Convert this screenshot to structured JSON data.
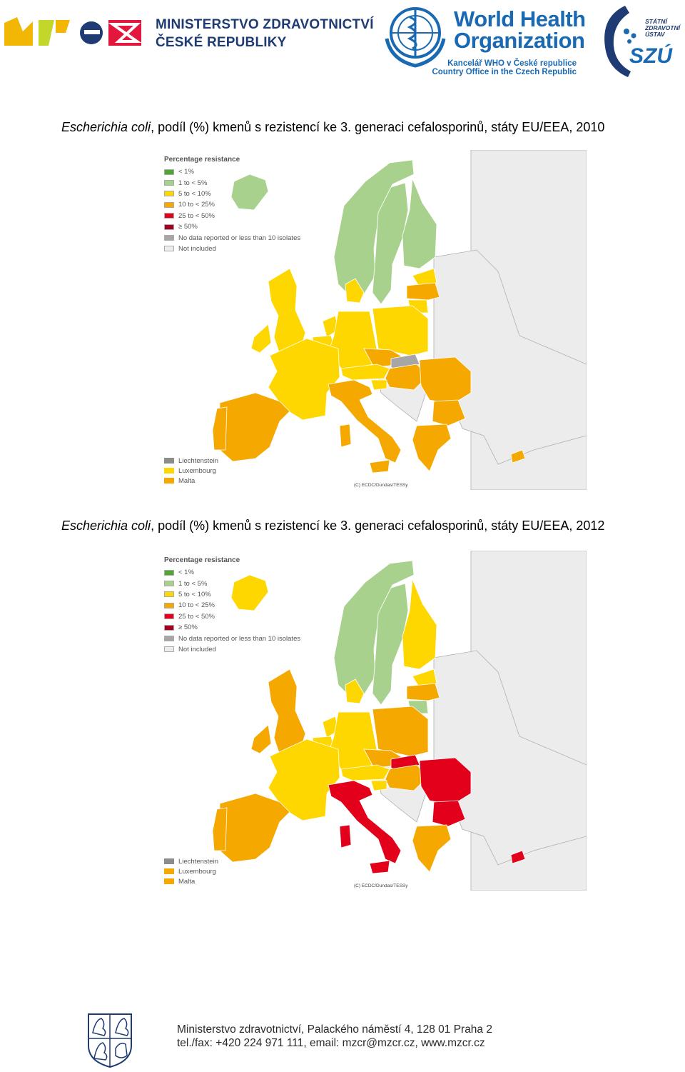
{
  "header": {
    "ministry_line1": "MINISTERSTVO ZDRAVOTNICTVÍ",
    "ministry_line2": "ČESKÉ REPUBLIKY",
    "who_line1": "World Health",
    "who_line2": "Organization",
    "who_sub1": "Kancelář WHO v České republice",
    "who_sub2": "Country Office in the Czech Republic",
    "szu_line1": "STÁTNÍ",
    "szu_line2": "ZDRAVOTNÍ",
    "szu_line3": "ÚSTAV",
    "szu_mark": "SZÚ"
  },
  "maps": [
    {
      "title_italic": "Escherichia coli",
      "title_rest": ", podíl (%) kmenů s rezistencí ke 3. generaci cefalosporinů, státy EU/EEA, 2010",
      "legend_title": "Percentage resistance",
      "legend": [
        {
          "label": "< 1%",
          "color": "#4ea72e"
        },
        {
          "label": "1 to < 5%",
          "color": "#a9d18e"
        },
        {
          "label": "5 to < 10%",
          "color": "#ffd700"
        },
        {
          "label": "10 to < 25%",
          "color": "#f5a800"
        },
        {
          "label": "25 to < 50%",
          "color": "#e2001a"
        },
        {
          "label": "≥ 50%",
          "color": "#a50021"
        },
        {
          "label": "No data reported or less than 10 isolates",
          "color": "#a6a6a6"
        },
        {
          "label": "Not included",
          "color": "#ececec"
        }
      ],
      "small_states": [
        {
          "label": "Liechtenstein",
          "color": "#8c8c8c"
        },
        {
          "label": "Luxembourg",
          "color": "#ffd700"
        },
        {
          "label": "Malta",
          "color": "#f5a800"
        }
      ],
      "copyright": "(C) ECDC/Dundas/TESSy",
      "countries": {
        "iceland": "#a9d18e",
        "norway": "#a9d18e",
        "sweden": "#a9d18e",
        "finland": "#a9d18e",
        "estonia": "#ffd700",
        "latvia": "#f5a800",
        "lithuania": "#ffd700",
        "ireland": "#ffd700",
        "uk": "#ffd700",
        "denmark": "#ffd700",
        "netherlands": "#ffd700",
        "belgium": "#ffd700",
        "germany": "#ffd700",
        "poland": "#ffd700",
        "czech": "#f5a800",
        "slovakia": "#a6a6a6",
        "austria": "#ffd700",
        "hungary": "#f5a800",
        "slovenia": "#ffd700",
        "france": "#ffd700",
        "spain": "#f5a800",
        "portugal": "#f5a800",
        "italy": "#f5a800",
        "romania": "#f5a800",
        "bulgaria": "#f5a800",
        "greece": "#f5a800",
        "cyprus": "#f5a800"
      }
    },
    {
      "title_italic": "Escherichia coli",
      "title_rest": ", podíl (%) kmenů s rezistencí ke 3. generaci cefalosporinů, státy EU/EEA, 2012",
      "legend_title": "Percentage resistance",
      "legend": [
        {
          "label": "< 1%",
          "color": "#4ea72e"
        },
        {
          "label": "1 to < 5%",
          "color": "#a9d18e"
        },
        {
          "label": "5 to < 10%",
          "color": "#ffd700"
        },
        {
          "label": "10 to < 25%",
          "color": "#f5a800"
        },
        {
          "label": "25 to < 50%",
          "color": "#e2001a"
        },
        {
          "label": "≥ 50%",
          "color": "#a50021"
        },
        {
          "label": "No data reported or less than 10 isolates",
          "color": "#a6a6a6"
        },
        {
          "label": "Not included",
          "color": "#ececec"
        }
      ],
      "small_states": [
        {
          "label": "Liechtenstein",
          "color": "#8c8c8c"
        },
        {
          "label": "Luxembourg",
          "color": "#f5a800"
        },
        {
          "label": "Malta",
          "color": "#f5a800"
        }
      ],
      "copyright": "(C) ECDC/Dundas/TESSy",
      "countries": {
        "iceland": "#ffd700",
        "norway": "#a9d18e",
        "sweden": "#a9d18e",
        "finland": "#ffd700",
        "estonia": "#ffd700",
        "latvia": "#f5a800",
        "lithuania": "#a9d18e",
        "ireland": "#f5a800",
        "uk": "#f5a800",
        "denmark": "#ffd700",
        "netherlands": "#ffd700",
        "belgium": "#ffd700",
        "germany": "#ffd700",
        "poland": "#f5a800",
        "czech": "#f5a800",
        "slovakia": "#e2001a",
        "austria": "#ffd700",
        "hungary": "#f5a800",
        "slovenia": "#ffd700",
        "france": "#ffd700",
        "spain": "#f5a800",
        "portugal": "#f5a800",
        "italy": "#e2001a",
        "romania": "#e2001a",
        "bulgaria": "#e2001a",
        "greece": "#f5a800",
        "cyprus": "#e2001a"
      }
    }
  ],
  "footer": {
    "line1": "Ministerstvo zdravotnictví, Palackého náměstí 4, 128 01 Praha 2",
    "line2": "tel./fax: +420 224 971 111, email: mzcr@mzcr.cz, www.mzcr.cz"
  }
}
